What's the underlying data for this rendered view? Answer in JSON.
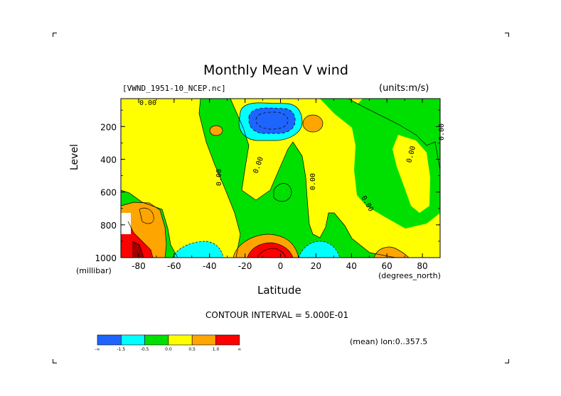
{
  "chart_data": {
    "type": "heatmap",
    "title": "Monthly Mean V wind",
    "file_label": "[VWND_1951-10_NCEP.nc]",
    "units_label": "(units:m/s)",
    "xlabel": "Latitude",
    "x_units": "(degrees_north)",
    "ylabel": "Level",
    "y_units": "(millibar)",
    "xlim": [
      -90,
      90
    ],
    "ylim": [
      1000,
      30
    ],
    "x_ticks": [
      -80,
      -60,
      -40,
      -20,
      0,
      20,
      40,
      60,
      80
    ],
    "y_ticks": [
      200,
      400,
      600,
      800,
      1000
    ],
    "contour_interval_text": "CONTOUR INTERVAL = 5.000E-01",
    "mean_text": "(mean) lon:0..357.5",
    "zero_contour_label": "0.00",
    "colorbar": {
      "colors": [
        "#1e64ff",
        "#00ffff",
        "#00e000",
        "#ffff00",
        "#ffa500",
        "#ff0000"
      ],
      "labels": [
        "-∞",
        "-1.5",
        "-0.5",
        "0.0",
        "0.5",
        "1.0",
        "∞"
      ]
    }
  }
}
